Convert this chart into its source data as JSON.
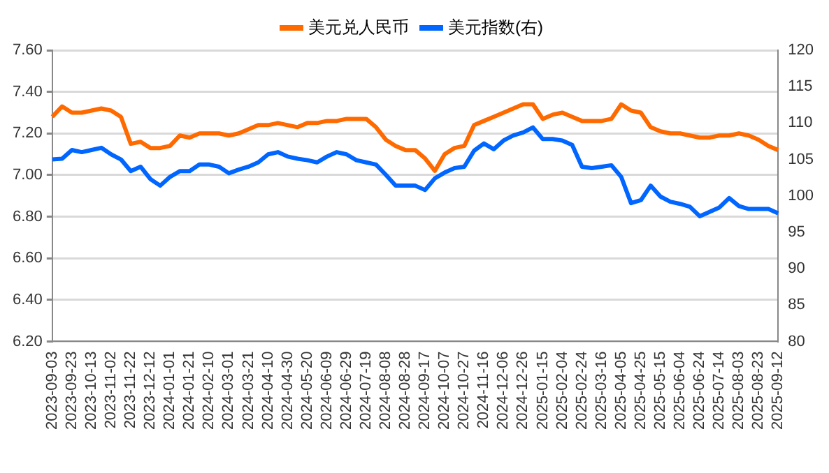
{
  "chart_data": {
    "type": "line",
    "categories": [
      "2023-09-03",
      null,
      "2023-09-23",
      null,
      "2023-10-13",
      null,
      "2023-11-02",
      null,
      "2023-11-22",
      null,
      "2023-12-12",
      null,
      "2024-01-01",
      null,
      "2024-01-21",
      null,
      "2024-02-10",
      null,
      "2024-03-01",
      null,
      "2024-03-21",
      null,
      "2024-04-10",
      null,
      "2024-04-30",
      null,
      "2024-05-20",
      null,
      "2024-06-09",
      null,
      "2024-06-29",
      null,
      "2024-07-19",
      null,
      "2024-08-08",
      null,
      "2024-08-28",
      null,
      "2024-09-17",
      null,
      "2024-10-07",
      null,
      "2024-10-27",
      null,
      "2024-11-16",
      null,
      "2024-12-06",
      null,
      "2024-12-26",
      null,
      "2025-01-15",
      null,
      "2025-02-04",
      null,
      "2025-02-24",
      null,
      "2025-03-16",
      null,
      "2025-04-05",
      null,
      "2025-04-25",
      null,
      "2025-05-15",
      null,
      "2025-06-04",
      null,
      "2025-06-24",
      null,
      "2025-07-14",
      null,
      "2025-08-03",
      null,
      "2025-08-23",
      null,
      "2025-09-12"
    ],
    "series": [
      {
        "name": "美元兑人民币",
        "color": "#ff6a00",
        "values": [
          7.28,
          7.33,
          7.3,
          7.3,
          7.31,
          7.32,
          7.31,
          7.28,
          7.15,
          7.16,
          7.13,
          7.13,
          7.14,
          7.19,
          7.18,
          7.2,
          7.2,
          7.2,
          7.19,
          7.2,
          7.22,
          7.24,
          7.24,
          7.25,
          7.24,
          7.23,
          7.25,
          7.25,
          7.26,
          7.26,
          7.27,
          7.27,
          7.27,
          7.23,
          7.17,
          7.14,
          7.12,
          7.12,
          7.08,
          7.02,
          7.1,
          7.13,
          7.14,
          7.24,
          7.26,
          7.28,
          7.3,
          7.32,
          7.34,
          7.34,
          7.27,
          7.29,
          7.3,
          7.28,
          7.26,
          7.26,
          7.26,
          7.27,
          7.34,
          7.31,
          7.3,
          7.23,
          7.21,
          7.2,
          7.2,
          7.19,
          7.18,
          7.18,
          7.19,
          7.19,
          7.2,
          7.19,
          7.17,
          7.14,
          7.12
        ]
      },
      {
        "name": "美元指数(右)",
        "color": "#0066ff",
        "axis": "y2",
        "values": [
          105.0,
          105.1,
          106.3,
          106.0,
          106.3,
          106.6,
          105.7,
          105.0,
          103.4,
          104.0,
          102.3,
          101.4,
          102.6,
          103.4,
          103.4,
          104.3,
          104.3,
          104.0,
          103.1,
          103.6,
          104.0,
          104.6,
          105.7,
          106.0,
          105.4,
          105.1,
          104.9,
          104.6,
          105.4,
          106.0,
          105.7,
          104.9,
          104.6,
          104.3,
          102.9,
          101.4,
          101.4,
          101.4,
          100.8,
          102.4,
          103.2,
          103.8,
          104.0,
          106.2,
          107.2,
          106.4,
          107.6,
          108.3,
          108.7,
          109.4,
          107.8,
          107.8,
          107.6,
          107.0,
          104.0,
          103.8,
          104.0,
          104.2,
          102.6,
          99.0,
          99.4,
          101.4,
          99.9,
          99.2,
          98.9,
          98.5,
          97.2,
          97.8,
          98.4,
          99.7,
          98.6,
          98.2,
          98.2,
          98.2,
          97.6
        ]
      }
    ],
    "ylim": [
      6.2,
      7.6
    ],
    "yticks": [
      {
        "value": 6.2,
        "label": "6.20"
      },
      {
        "value": 6.4,
        "label": "6.40"
      },
      {
        "value": 6.6,
        "label": "6.60"
      },
      {
        "value": 6.8,
        "label": "6.80"
      },
      {
        "value": 7.0,
        "label": "7.00"
      },
      {
        "value": 7.2,
        "label": "7.20"
      },
      {
        "value": 7.4,
        "label": "7.40"
      },
      {
        "value": 7.6,
        "label": "7.60"
      }
    ],
    "y2lim": [
      80,
      120
    ],
    "y2ticks": [
      80,
      85,
      90,
      95,
      100,
      105,
      110,
      115,
      120
    ],
    "grid": "y",
    "legend": "top",
    "marker": "none",
    "line_style": "solid"
  }
}
